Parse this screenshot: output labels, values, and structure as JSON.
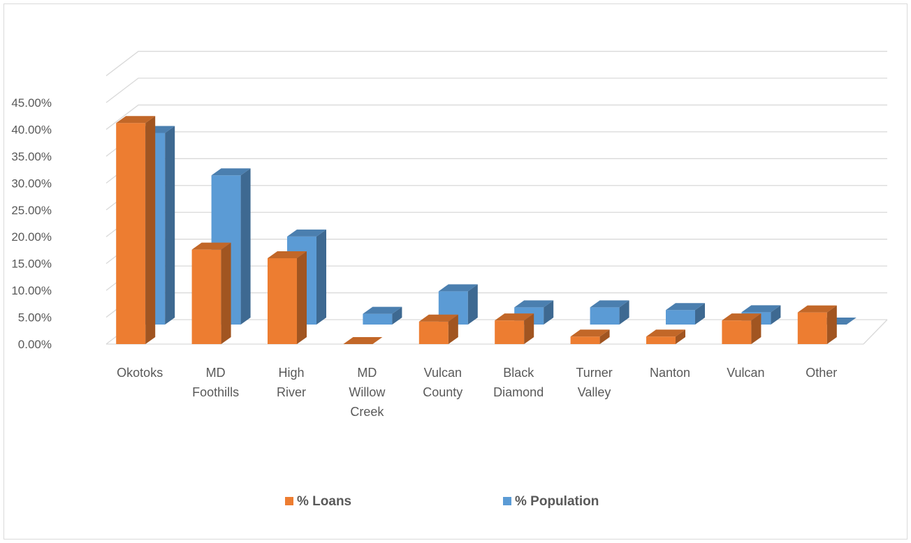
{
  "chart_data": {
    "type": "bar",
    "style": "3d-clustered-column",
    "categories": [
      [
        "Okotoks"
      ],
      [
        "MD",
        "Foothills"
      ],
      [
        "High",
        "River"
      ],
      [
        "MD",
        "Willow",
        "Creek"
      ],
      [
        "Vulcan",
        "County"
      ],
      [
        "Black",
        "Diamond"
      ],
      [
        "Turner",
        "Valley"
      ],
      [
        "Nanton"
      ],
      [
        "Vulcan"
      ],
      [
        "Other"
      ]
    ],
    "series": [
      {
        "name": "% Loans",
        "color": "#ED7D31",
        "values": [
          0.412,
          0.176,
          0.16,
          0.0,
          0.042,
          0.044,
          0.014,
          0.014,
          0.044,
          0.059
        ]
      },
      {
        "name": "% Population",
        "color": "#5B9BD5",
        "values": [
          0.357,
          0.278,
          0.164,
          0.02,
          0.062,
          0.032,
          0.032,
          0.027,
          0.023,
          0.0
        ]
      }
    ],
    "y_ticks": [
      "0.00%",
      "5.00%",
      "10.00%",
      "15.00%",
      "20.00%",
      "25.00%",
      "30.00%",
      "35.00%",
      "40.00%",
      "45.00%"
    ],
    "ylim": [
      0,
      0.45
    ],
    "grid": true,
    "legend_position": "bottom"
  }
}
